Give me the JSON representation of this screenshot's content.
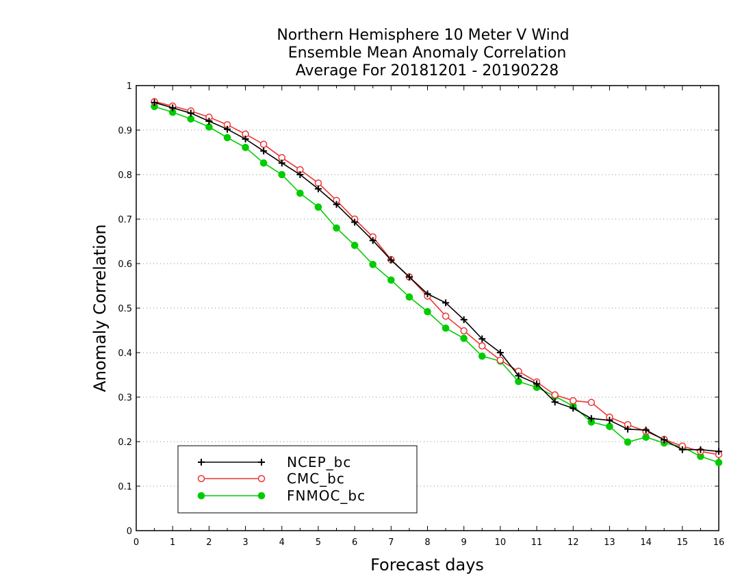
{
  "chart_data": {
    "type": "line",
    "title_lines": [
      "Northern Hemisphere 10 Meter V Wind",
      "Ensemble Mean Anomaly Correlation",
      "Average For 20181201 - 20190228"
    ],
    "xlabel": "Forecast days",
    "ylabel": "Anomaly Correlation",
    "xlim": [
      0,
      16
    ],
    "ylim": [
      0,
      1
    ],
    "x_ticks": [
      "0",
      "1",
      "2",
      "3",
      "4",
      "5",
      "6",
      "7",
      "8",
      "9",
      "10",
      "11",
      "12",
      "13",
      "14",
      "15",
      "16"
    ],
    "y_ticks": [
      "0",
      "0.1",
      "0.2",
      "0.3",
      "0.4",
      "0.5",
      "0.6",
      "0.7",
      "0.8",
      "0.9",
      "1"
    ],
    "grid": "horizontal dotted",
    "legend_position": "bottom-left",
    "x": [
      0.5,
      1,
      1.5,
      2,
      2.5,
      3,
      3.5,
      4,
      4.5,
      5,
      5.5,
      6,
      6.5,
      7,
      7.5,
      8,
      8.5,
      9,
      9.5,
      10,
      10.5,
      11,
      11.5,
      12,
      12.5,
      13,
      13.5,
      14,
      14.5,
      15,
      15.5,
      16
    ],
    "series": [
      {
        "name": "NCEP_bc",
        "color": "#000000",
        "marker": "plus",
        "values": [
          0.962,
          0.95,
          0.938,
          0.92,
          0.902,
          0.88,
          0.853,
          0.826,
          0.8,
          0.768,
          0.733,
          0.693,
          0.652,
          0.608,
          0.57,
          0.532,
          0.512,
          0.474,
          0.431,
          0.4,
          0.348,
          0.33,
          0.289,
          0.275,
          0.252,
          0.248,
          0.228,
          0.226,
          0.204,
          0.182,
          0.182,
          0.178
        ]
      },
      {
        "name": "CMC_bc",
        "color": "#ee3333",
        "marker": "open-circle",
        "values": [
          0.964,
          0.954,
          0.943,
          0.929,
          0.912,
          0.891,
          0.868,
          0.838,
          0.811,
          0.781,
          0.742,
          0.7,
          0.66,
          0.609,
          0.57,
          0.527,
          0.482,
          0.449,
          0.415,
          0.383,
          0.358,
          0.334,
          0.305,
          0.292,
          0.288,
          0.255,
          0.238,
          0.223,
          0.205,
          0.19,
          0.178,
          0.171
        ]
      },
      {
        "name": "FNMOC_bc",
        "color": "#00cc00",
        "marker": "filled-circle",
        "values": [
          0.953,
          0.94,
          0.925,
          0.907,
          0.883,
          0.861,
          0.826,
          0.8,
          0.758,
          0.727,
          0.68,
          0.641,
          0.598,
          0.563,
          0.525,
          0.492,
          0.455,
          0.432,
          0.392,
          0.381,
          0.335,
          0.322,
          0.302,
          0.28,
          0.244,
          0.234,
          0.199,
          0.21,
          0.197,
          0.188,
          0.167,
          0.153
        ]
      }
    ]
  }
}
